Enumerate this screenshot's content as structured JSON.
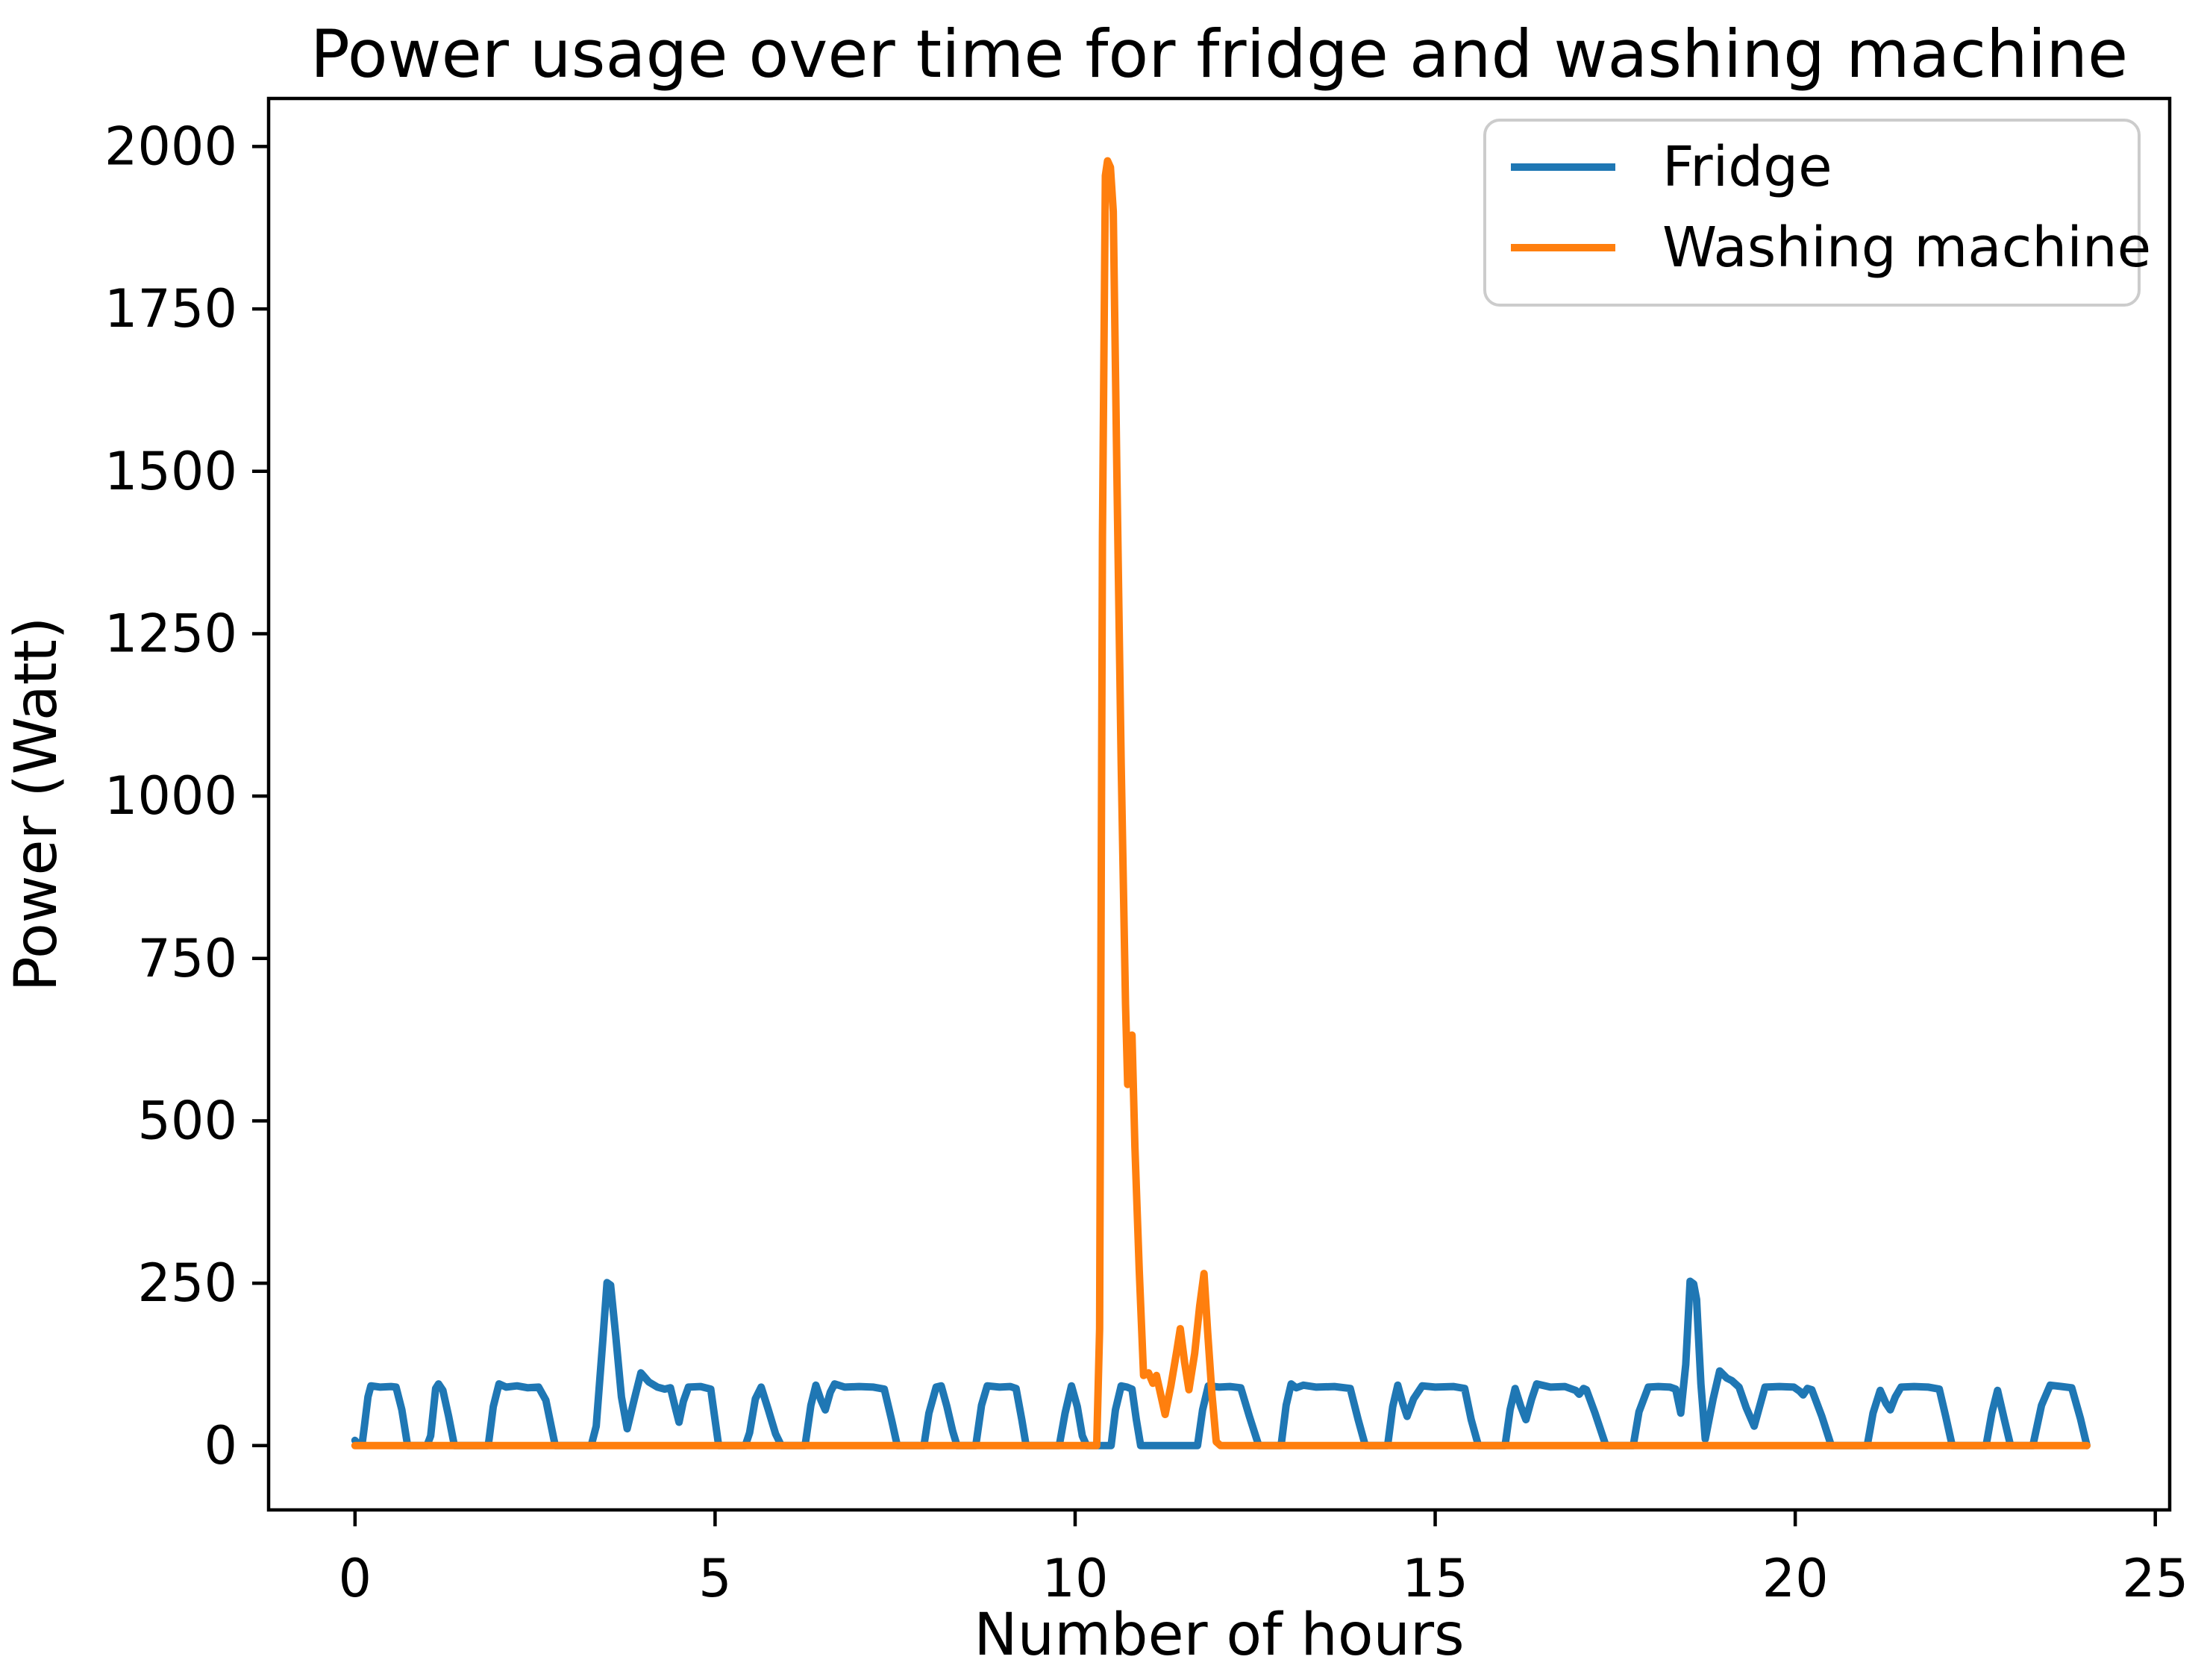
{
  "chart": {
    "title": "Power usage over time for fridge and washing machine",
    "xlabel": "Number of hours",
    "ylabel": "Power (Watt)"
  },
  "legend": {
    "entries": [
      {
        "label": "Fridge",
        "color": "#1f77b4"
      },
      {
        "label": "Washing machine",
        "color": "#ff7f0e"
      }
    ]
  },
  "chart_data": {
    "type": "line",
    "title": "Power usage over time for fridge and washing machine",
    "xlabel": "Number of hours",
    "ylabel": "Power (Watt)",
    "xlim": [
      -1.2,
      25.2
    ],
    "ylim": [
      -99,
      2074
    ],
    "xticks": [
      0,
      5,
      10,
      15,
      20,
      25
    ],
    "yticks": [
      0,
      250,
      500,
      750,
      1000,
      1250,
      1500,
      1750,
      2000
    ],
    "grid": false,
    "legend_position": "upper right",
    "line_width": 10,
    "series": [
      {
        "name": "Fridge",
        "color": "#1f77b4",
        "points": [
          [
            0,
            8
          ],
          [
            0.05,
            1
          ],
          [
            0.1,
            4
          ],
          [
            0.13,
            30
          ],
          [
            0.18,
            75
          ],
          [
            0.22,
            92
          ],
          [
            0.35,
            90
          ],
          [
            0.5,
            91
          ],
          [
            0.57,
            90
          ],
          [
            0.65,
            55
          ],
          [
            0.73,
            0
          ],
          [
            1.0,
            0
          ],
          [
            1.05,
            15
          ],
          [
            1.12,
            88
          ],
          [
            1.16,
            95
          ],
          [
            1.22,
            85
          ],
          [
            1.3,
            45
          ],
          [
            1.38,
            0
          ],
          [
            1.85,
            0
          ],
          [
            1.92,
            60
          ],
          [
            2.0,
            95
          ],
          [
            2.1,
            90
          ],
          [
            2.25,
            92
          ],
          [
            2.4,
            89
          ],
          [
            2.55,
            90
          ],
          [
            2.65,
            70
          ],
          [
            2.78,
            0
          ],
          [
            3.28,
            0
          ],
          [
            3.35,
            30
          ],
          [
            3.44,
            160
          ],
          [
            3.5,
            251
          ],
          [
            3.55,
            247
          ],
          [
            3.62,
            170
          ],
          [
            3.7,
            75
          ],
          [
            3.78,
            26
          ],
          [
            3.88,
            72
          ],
          [
            3.97,
            112
          ],
          [
            4.08,
            98
          ],
          [
            4.2,
            90
          ],
          [
            4.3,
            87
          ],
          [
            4.38,
            89
          ],
          [
            4.44,
            62
          ],
          [
            4.5,
            36
          ],
          [
            4.56,
            68
          ],
          [
            4.63,
            90
          ],
          [
            4.8,
            91
          ],
          [
            4.94,
            87
          ],
          [
            5.05,
            0
          ],
          [
            5.42,
            0
          ],
          [
            5.48,
            20
          ],
          [
            5.56,
            72
          ],
          [
            5.64,
            90
          ],
          [
            5.74,
            55
          ],
          [
            5.84,
            18
          ],
          [
            5.92,
            0
          ],
          [
            6.25,
            0
          ],
          [
            6.33,
            62
          ],
          [
            6.4,
            93
          ],
          [
            6.47,
            70
          ],
          [
            6.53,
            55
          ],
          [
            6.6,
            82
          ],
          [
            6.66,
            95
          ],
          [
            6.8,
            90
          ],
          [
            7.0,
            91
          ],
          [
            7.2,
            90
          ],
          [
            7.35,
            87
          ],
          [
            7.45,
            40
          ],
          [
            7.53,
            0
          ],
          [
            7.9,
            0
          ],
          [
            7.97,
            50
          ],
          [
            8.07,
            90
          ],
          [
            8.14,
            92
          ],
          [
            8.22,
            60
          ],
          [
            8.3,
            22
          ],
          [
            8.36,
            0
          ],
          [
            8.62,
            0
          ],
          [
            8.7,
            62
          ],
          [
            8.78,
            92
          ],
          [
            8.95,
            90
          ],
          [
            9.1,
            91
          ],
          [
            9.18,
            88
          ],
          [
            9.26,
            40
          ],
          [
            9.32,
            0
          ],
          [
            9.78,
            0
          ],
          [
            9.86,
            50
          ],
          [
            9.95,
            92
          ],
          [
            10.03,
            60
          ],
          [
            10.1,
            15
          ],
          [
            10.16,
            0
          ],
          [
            10.5,
            0
          ],
          [
            10.56,
            55
          ],
          [
            10.64,
            92
          ],
          [
            10.72,
            90
          ],
          [
            10.79,
            87
          ],
          [
            10.85,
            40
          ],
          [
            10.91,
            0
          ],
          [
            11.7,
            0
          ],
          [
            11.77,
            55
          ],
          [
            11.85,
            92
          ],
          [
            12.0,
            90
          ],
          [
            12.15,
            91
          ],
          [
            12.3,
            89
          ],
          [
            12.42,
            45
          ],
          [
            12.55,
            0
          ],
          [
            12.86,
            0
          ],
          [
            12.93,
            62
          ],
          [
            13.0,
            95
          ],
          [
            13.07,
            89
          ],
          [
            13.17,
            93
          ],
          [
            13.35,
            90
          ],
          [
            13.6,
            91
          ],
          [
            13.82,
            88
          ],
          [
            13.93,
            40
          ],
          [
            14.03,
            0
          ],
          [
            14.34,
            0
          ],
          [
            14.41,
            60
          ],
          [
            14.48,
            93
          ],
          [
            14.55,
            65
          ],
          [
            14.61,
            45
          ],
          [
            14.7,
            72
          ],
          [
            14.82,
            92
          ],
          [
            15.0,
            90
          ],
          [
            15.25,
            91
          ],
          [
            15.41,
            88
          ],
          [
            15.5,
            40
          ],
          [
            15.6,
            0
          ],
          [
            15.97,
            0
          ],
          [
            16.04,
            55
          ],
          [
            16.11,
            88
          ],
          [
            16.19,
            60
          ],
          [
            16.26,
            40
          ],
          [
            16.34,
            72
          ],
          [
            16.41,
            95
          ],
          [
            16.6,
            90
          ],
          [
            16.8,
            91
          ],
          [
            16.95,
            85
          ],
          [
            17.0,
            79
          ],
          [
            17.06,
            88
          ],
          [
            17.1,
            86
          ],
          [
            17.22,
            50
          ],
          [
            17.37,
            0
          ],
          [
            17.75,
            0
          ],
          [
            17.83,
            52
          ],
          [
            17.96,
            90
          ],
          [
            18.1,
            91
          ],
          [
            18.26,
            90
          ],
          [
            18.34,
            87
          ],
          [
            18.41,
            50
          ],
          [
            18.48,
            125
          ],
          [
            18.54,
            253
          ],
          [
            18.59,
            249
          ],
          [
            18.63,
            225
          ],
          [
            18.69,
            95
          ],
          [
            18.75,
            10
          ],
          [
            18.86,
            72
          ],
          [
            18.95,
            115
          ],
          [
            19.05,
            104
          ],
          [
            19.12,
            100
          ],
          [
            19.22,
            90
          ],
          [
            19.32,
            58
          ],
          [
            19.43,
            30
          ],
          [
            19.51,
            62
          ],
          [
            19.58,
            90
          ],
          [
            19.78,
            91
          ],
          [
            19.98,
            90
          ],
          [
            20.06,
            84
          ],
          [
            20.11,
            78
          ],
          [
            20.17,
            88
          ],
          [
            20.23,
            86
          ],
          [
            20.37,
            45
          ],
          [
            20.5,
            0
          ],
          [
            21.0,
            0
          ],
          [
            21.08,
            50
          ],
          [
            21.18,
            85
          ],
          [
            21.26,
            65
          ],
          [
            21.32,
            55
          ],
          [
            21.39,
            75
          ],
          [
            21.47,
            90
          ],
          [
            21.65,
            91
          ],
          [
            21.85,
            90
          ],
          [
            22.0,
            87
          ],
          [
            22.09,
            45
          ],
          [
            22.18,
            0
          ],
          [
            22.65,
            0
          ],
          [
            22.73,
            50
          ],
          [
            22.81,
            85
          ],
          [
            22.9,
            42
          ],
          [
            22.99,
            0
          ],
          [
            23.3,
            0
          ],
          [
            23.42,
            62
          ],
          [
            23.54,
            93
          ],
          [
            23.7,
            91
          ],
          [
            23.84,
            89
          ],
          [
            23.96,
            42
          ],
          [
            24.05,
            0
          ]
        ]
      },
      {
        "name": "Washing machine",
        "color": "#ff7f0e",
        "points": [
          [
            0,
            0
          ],
          [
            10.3,
            0
          ],
          [
            10.34,
            180
          ],
          [
            10.38,
            1400
          ],
          [
            10.42,
            1955
          ],
          [
            10.45,
            1978
          ],
          [
            10.49,
            1968
          ],
          [
            10.53,
            1900
          ],
          [
            10.58,
            1500
          ],
          [
            10.64,
            1050
          ],
          [
            10.7,
            680
          ],
          [
            10.73,
            556
          ],
          [
            10.76,
            615
          ],
          [
            10.79,
            632
          ],
          [
            10.83,
            460
          ],
          [
            10.89,
            270
          ],
          [
            10.95,
            108
          ],
          [
            11.02,
            112
          ],
          [
            11.08,
            96
          ],
          [
            11.13,
            108
          ],
          [
            11.19,
            78
          ],
          [
            11.25,
            48
          ],
          [
            11.33,
            92
          ],
          [
            11.41,
            145
          ],
          [
            11.46,
            180
          ],
          [
            11.52,
            128
          ],
          [
            11.58,
            86
          ],
          [
            11.66,
            142
          ],
          [
            11.73,
            215
          ],
          [
            11.79,
            265
          ],
          [
            11.84,
            175
          ],
          [
            11.9,
            80
          ],
          [
            11.96,
            6
          ],
          [
            12.02,
            0
          ],
          [
            24.05,
            0
          ]
        ]
      }
    ]
  }
}
